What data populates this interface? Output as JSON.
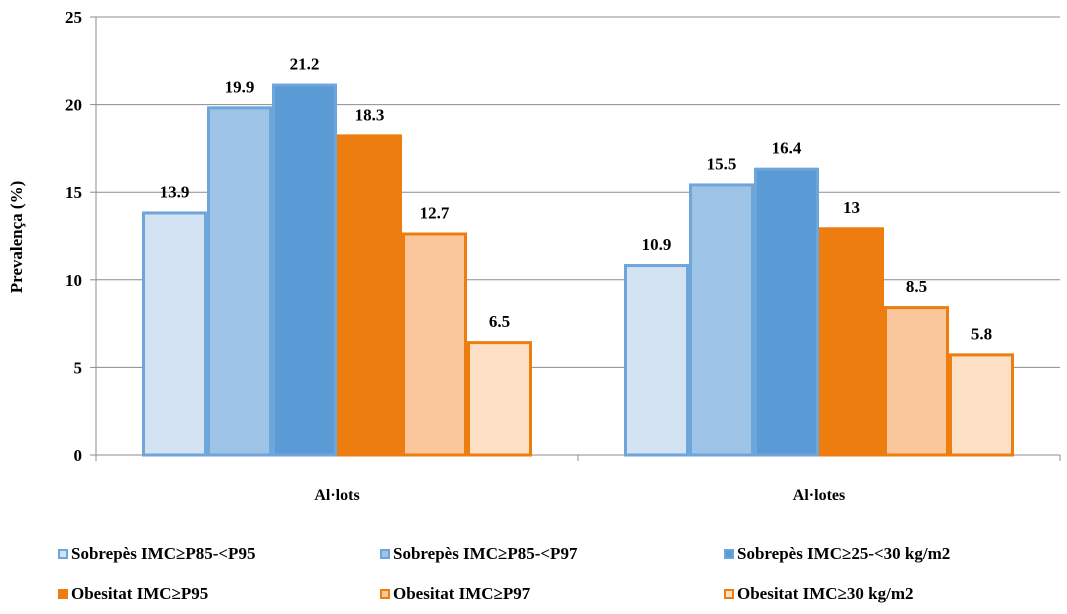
{
  "chart_data": {
    "type": "bar",
    "categories": [
      "Al·lots",
      "Al·lotes"
    ],
    "ylabel": "Prevalença (%)",
    "xlabel": "",
    "ylim": [
      0,
      25
    ],
    "yticks": [
      0,
      5,
      10,
      15,
      20,
      25
    ],
    "grid": true,
    "legend_position": "bottom",
    "series": [
      {
        "name": "Sobrepès IMC≥P85-<P95",
        "values": [
          13.9,
          10.9
        ],
        "labels": [
          "13.9",
          "10.9"
        ],
        "fill": "#d3e3f4",
        "stroke": "#6ea6dc"
      },
      {
        "name": "Sobrepès IMC≥P85-<P97",
        "values": [
          19.9,
          15.5
        ],
        "labels": [
          "19.9",
          "15.5"
        ],
        "fill": "#9dc3e6",
        "stroke": "#6ea6dc"
      },
      {
        "name": "Sobrepès IMC≥25-<30 kg/m2",
        "values": [
          21.2,
          16.4
        ],
        "labels": [
          "21.2",
          "16.4"
        ],
        "fill": "#5b9bd5",
        "stroke": "#6ea6dc"
      },
      {
        "name": "Obesitat IMC≥P95",
        "values": [
          18.3,
          13
        ],
        "labels": [
          "18.3",
          "13"
        ],
        "fill": "#ed7d0f",
        "stroke": "#ed7d0f"
      },
      {
        "name": "Obesitat IMC≥P97",
        "values": [
          12.7,
          8.5
        ],
        "labels": [
          "12.7",
          "8.5"
        ],
        "fill": "#fac79c",
        "stroke": "#ed7d0f"
      },
      {
        "name": "Obesitat IMC≥30 kg/m2",
        "values": [
          6.5,
          5.8
        ],
        "labels": [
          "6.5",
          "5.8"
        ],
        "fill": "#fde0c6",
        "stroke": "#ed7d0f"
      }
    ]
  }
}
